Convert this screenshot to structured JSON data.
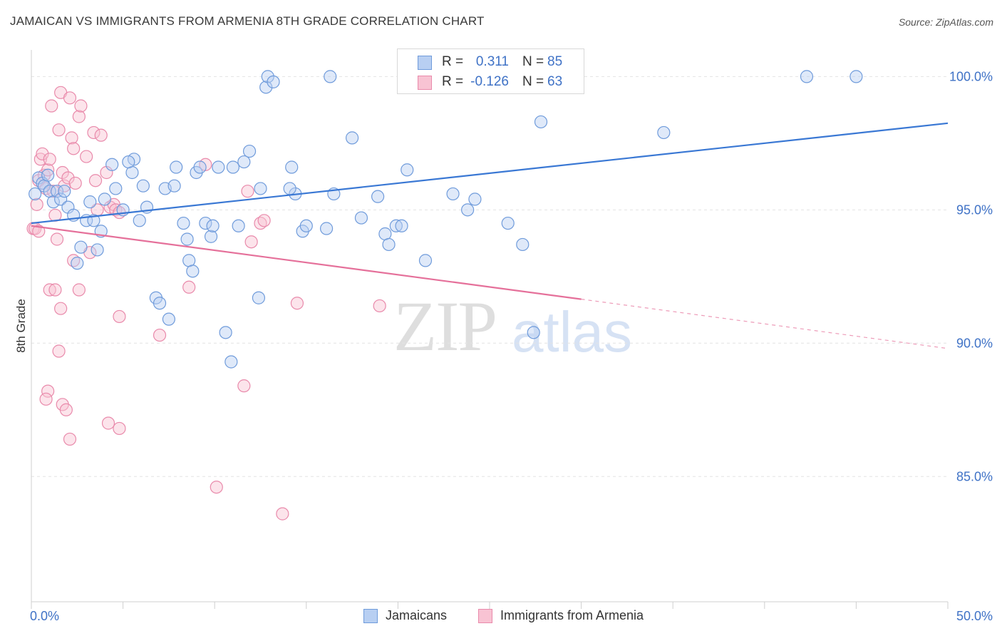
{
  "title": "JAMAICAN VS IMMIGRANTS FROM ARMENIA 8TH GRADE CORRELATION CHART",
  "source": "Source: ZipAtlas.com",
  "watermark": {
    "zip": "ZIP",
    "atlas": "atlas"
  },
  "legend": {
    "rows": [
      {
        "r_label": "R =",
        "r_value": "0.311",
        "n_label": "N =",
        "n_value": "85"
      },
      {
        "r_label": "R =",
        "r_value": "-0.126",
        "n_label": "N =",
        "n_value": "63"
      }
    ]
  },
  "bottom_legend": {
    "series1": "Jamaicans",
    "series2": "Immigrants from Armenia"
  },
  "colors": {
    "blue_fill": "#b8cff2",
    "blue_stroke": "#6f9bdb",
    "blue_line": "#3a78d4",
    "pink_fill": "#f8c3d3",
    "pink_stroke": "#e98aab",
    "pink_line": "#e5709a",
    "axis_text": "#3f72c6"
  },
  "chart_data": {
    "type": "scatter",
    "title": "JAMAICAN VS IMMIGRANTS FROM ARMENIA 8TH GRADE CORRELATION CHART",
    "xlabel": "",
    "ylabel": "8th Grade",
    "xlim": [
      0,
      50
    ],
    "ylim": [
      80.3,
      101.0
    ],
    "x_tick_labels": [
      "0.0%",
      "50.0%"
    ],
    "y_ticks": [
      85,
      90,
      95,
      100
    ],
    "y_tick_labels": [
      "85.0%",
      "90.0%",
      "95.0%",
      "100.0%"
    ],
    "grid": true,
    "series": [
      {
        "name": "Jamaicans",
        "r": 0.311,
        "n": 85,
        "trend": {
          "x0": 0,
          "y0": 94.5,
          "x1": 50,
          "y1": 98.25
        },
        "points": [
          [
            0.2,
            95.6
          ],
          [
            0.4,
            96.2
          ],
          [
            0.6,
            96.0
          ],
          [
            0.7,
            95.9
          ],
          [
            0.9,
            96.3
          ],
          [
            1.0,
            95.7
          ],
          [
            1.2,
            95.3
          ],
          [
            1.4,
            95.7
          ],
          [
            1.6,
            95.4
          ],
          [
            1.8,
            95.7
          ],
          [
            2.0,
            95.1
          ],
          [
            2.3,
            94.8
          ],
          [
            2.5,
            93.0
          ],
          [
            2.7,
            93.6
          ],
          [
            3.0,
            94.6
          ],
          [
            3.2,
            95.3
          ],
          [
            3.4,
            94.6
          ],
          [
            3.6,
            93.5
          ],
          [
            3.8,
            94.2
          ],
          [
            4.0,
            95.4
          ],
          [
            4.4,
            96.7
          ],
          [
            4.6,
            95.8
          ],
          [
            5.0,
            95.0
          ],
          [
            5.5,
            96.4
          ],
          [
            5.6,
            96.9
          ],
          [
            5.9,
            94.6
          ],
          [
            6.1,
            95.9
          ],
          [
            6.3,
            95.1
          ],
          [
            6.8,
            91.7
          ],
          [
            7.0,
            91.5
          ],
          [
            7.3,
            95.8
          ],
          [
            7.5,
            90.9
          ],
          [
            7.8,
            95.9
          ],
          [
            7.9,
            96.6
          ],
          [
            8.3,
            94.5
          ],
          [
            8.5,
            93.9
          ],
          [
            8.6,
            93.1
          ],
          [
            8.8,
            92.7
          ],
          [
            9.0,
            96.4
          ],
          [
            9.5,
            94.5
          ],
          [
            9.8,
            94.0
          ],
          [
            9.9,
            94.4
          ],
          [
            10.2,
            96.6
          ],
          [
            10.6,
            90.4
          ],
          [
            10.9,
            89.3
          ],
          [
            11.0,
            96.6
          ],
          [
            11.3,
            94.4
          ],
          [
            11.6,
            96.8
          ],
          [
            11.9,
            97.2
          ],
          [
            12.5,
            95.8
          ],
          [
            12.8,
            99.6
          ],
          [
            12.9,
            100.0
          ],
          [
            12.4,
            91.7
          ],
          [
            13.2,
            99.8
          ],
          [
            14.2,
            96.6
          ],
          [
            14.4,
            95.6
          ],
          [
            14.8,
            94.2
          ],
          [
            15.0,
            94.4
          ],
          [
            16.1,
            94.3
          ],
          [
            16.3,
            100.0
          ],
          [
            16.5,
            95.6
          ],
          [
            17.5,
            97.7
          ],
          [
            18.0,
            94.7
          ],
          [
            18.9,
            95.5
          ],
          [
            19.3,
            94.1
          ],
          [
            19.5,
            93.7
          ],
          [
            19.9,
            94.4
          ],
          [
            20.2,
            94.4
          ],
          [
            20.5,
            96.5
          ],
          [
            21.0,
            100.0
          ],
          [
            21.5,
            93.1
          ],
          [
            23.0,
            95.6
          ],
          [
            23.8,
            95.0
          ],
          [
            24.2,
            95.4
          ],
          [
            26.8,
            93.7
          ],
          [
            27.4,
            90.4
          ],
          [
            27.8,
            98.3
          ],
          [
            28.3,
            100.0
          ],
          [
            34.5,
            97.9
          ],
          [
            42.3,
            100.0
          ],
          [
            45.0,
            100.0
          ],
          [
            26.0,
            94.5
          ],
          [
            14.1,
            95.8
          ],
          [
            5.3,
            96.8
          ],
          [
            9.2,
            96.6
          ]
        ]
      },
      {
        "name": "Immigrants from Armenia",
        "r": -0.126,
        "n": 63,
        "trend": {
          "x0": 0,
          "y0": 94.4,
          "x1": 30,
          "y1": 91.65
        },
        "trend_dashed": {
          "x0": 30,
          "y0": 91.65,
          "x1": 50,
          "y1": 89.8
        },
        "points": [
          [
            0.1,
            94.3
          ],
          [
            0.3,
            95.2
          ],
          [
            0.4,
            96.1
          ],
          [
            0.5,
            96.9
          ],
          [
            0.6,
            97.1
          ],
          [
            0.7,
            96.3
          ],
          [
            0.8,
            95.8
          ],
          [
            0.9,
            96.5
          ],
          [
            1.0,
            96.9
          ],
          [
            1.1,
            98.9
          ],
          [
            1.2,
            95.7
          ],
          [
            1.3,
            94.8
          ],
          [
            1.4,
            93.9
          ],
          [
            1.5,
            98.0
          ],
          [
            1.6,
            99.4
          ],
          [
            1.7,
            96.4
          ],
          [
            1.8,
            95.9
          ],
          [
            2.0,
            96.2
          ],
          [
            2.1,
            99.2
          ],
          [
            2.2,
            97.7
          ],
          [
            2.3,
            97.3
          ],
          [
            2.4,
            96.0
          ],
          [
            2.6,
            98.5
          ],
          [
            2.7,
            98.9
          ],
          [
            3.0,
            97.0
          ],
          [
            3.2,
            93.4
          ],
          [
            3.4,
            97.9
          ],
          [
            3.5,
            96.1
          ],
          [
            3.6,
            95.0
          ],
          [
            3.8,
            97.8
          ],
          [
            4.1,
            96.4
          ],
          [
            4.3,
            95.1
          ],
          [
            4.5,
            95.2
          ],
          [
            4.6,
            95.0
          ],
          [
            4.8,
            94.9
          ],
          [
            0.2,
            94.3
          ],
          [
            0.4,
            94.2
          ],
          [
            1.0,
            92.0
          ],
          [
            1.3,
            92.0
          ],
          [
            1.6,
            91.3
          ],
          [
            2.6,
            92.0
          ],
          [
            2.3,
            93.1
          ],
          [
            4.8,
            91.0
          ],
          [
            1.5,
            89.7
          ],
          [
            0.9,
            88.2
          ],
          [
            0.8,
            87.9
          ],
          [
            1.7,
            87.7
          ],
          [
            1.9,
            87.5
          ],
          [
            2.1,
            86.4
          ],
          [
            4.2,
            87.0
          ],
          [
            4.8,
            86.8
          ],
          [
            7.0,
            90.3
          ],
          [
            8.6,
            92.1
          ],
          [
            9.5,
            96.7
          ],
          [
            10.1,
            84.6
          ],
          [
            11.6,
            88.4
          ],
          [
            11.8,
            95.7
          ],
          [
            12.0,
            93.8
          ],
          [
            12.5,
            94.5
          ],
          [
            12.7,
            94.6
          ],
          [
            13.7,
            83.6
          ],
          [
            14.5,
            91.5
          ],
          [
            19.0,
            91.4
          ]
        ]
      }
    ]
  }
}
